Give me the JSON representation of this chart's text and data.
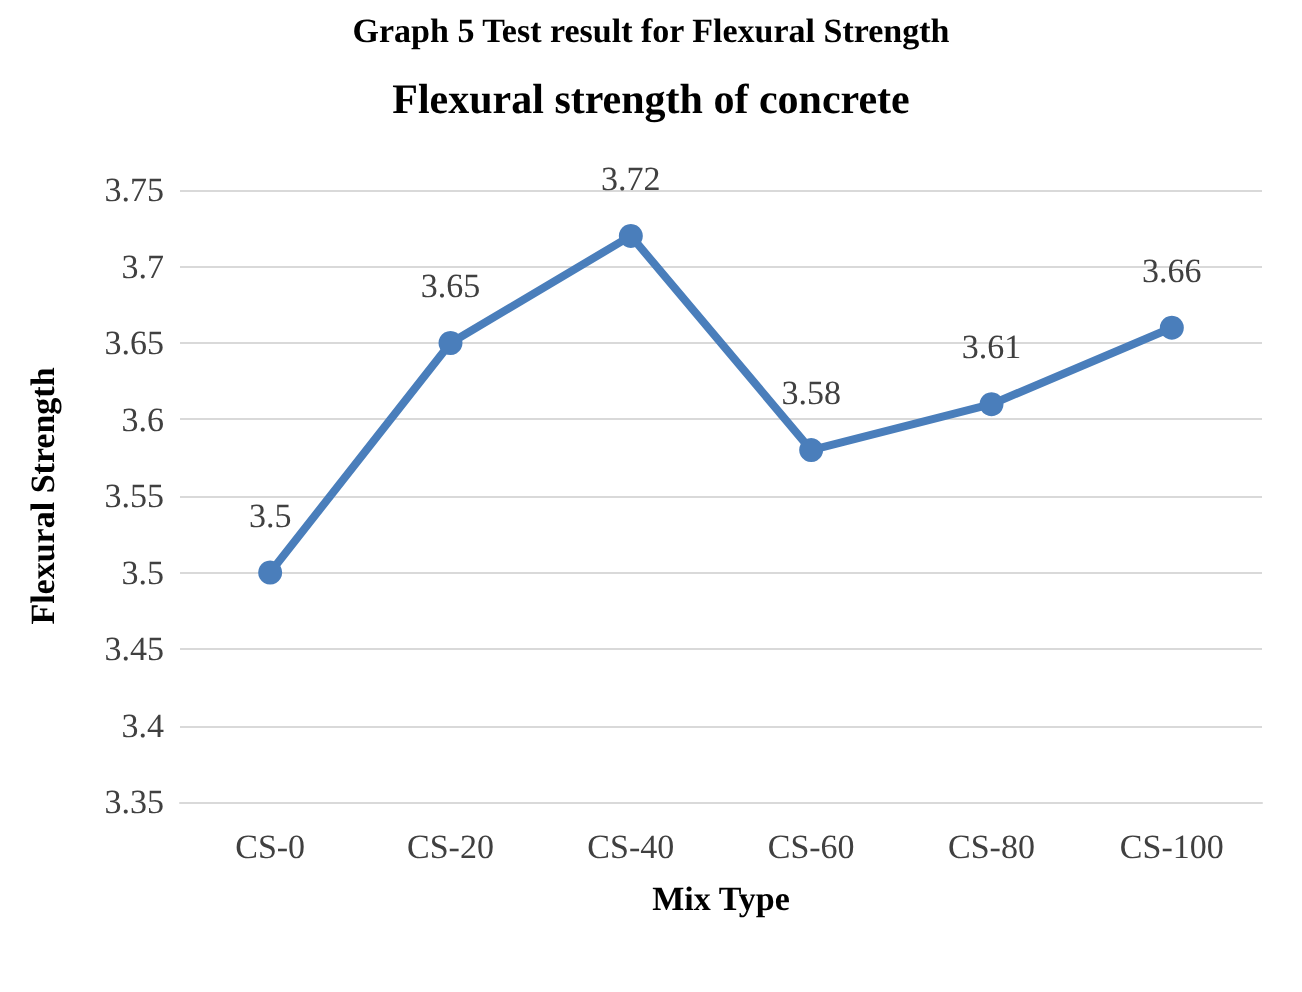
{
  "chart_data": {
    "type": "line",
    "title": "Flexural strength of concrete",
    "xlabel": "Mix Type",
    "ylabel": "Flexural Strength",
    "annotations": [
      "Graph 5 Test result for Flexural Strength"
    ],
    "categories": [
      "CS-0",
      "CS-20",
      "CS-40",
      "CS-60",
      "CS-80",
      "CS-100"
    ],
    "series": [
      {
        "color": "#4a7ebb",
        "values": [
          3.5,
          3.65,
          3.72,
          3.58,
          3.61,
          3.66
        ]
      }
    ],
    "ylim": [
      3.35,
      3.75
    ],
    "yticks": [
      3.35,
      3.4,
      3.45,
      3.5,
      3.55,
      3.6,
      3.65,
      3.7,
      3.75
    ],
    "grid": "y",
    "marker": "circle",
    "line_style": "solid",
    "data_labels": true
  }
}
